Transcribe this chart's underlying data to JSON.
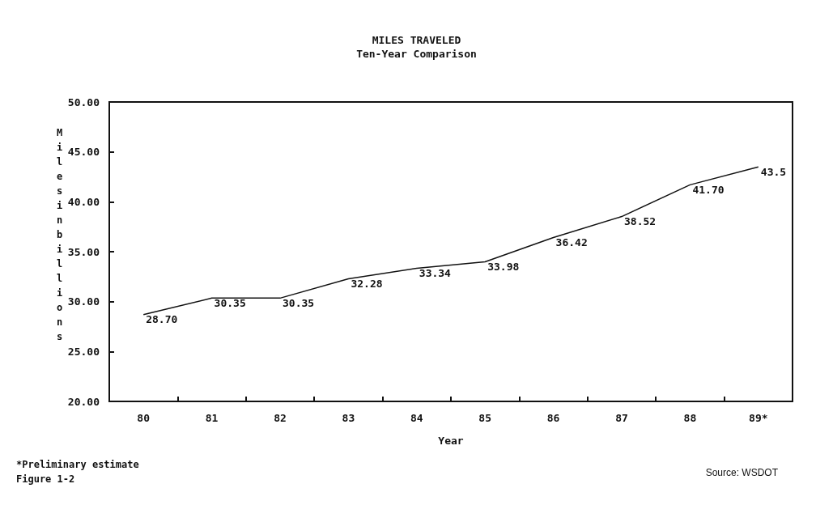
{
  "chart_data": {
    "type": "line",
    "title": "MILES TRAVELED",
    "subtitle": "Ten-Year Comparison",
    "xlabel": "Year",
    "ylabel": "Miles in billions",
    "categories": [
      "80",
      "81",
      "82",
      "83",
      "84",
      "85",
      "86",
      "87",
      "88",
      "89*"
    ],
    "series": [
      {
        "color": "#111111",
        "values": [
          28.7,
          30.35,
          30.35,
          32.28,
          33.34,
          33.98,
          36.42,
          38.52,
          41.7,
          43.5
        ],
        "value_labels": [
          "28.70",
          "30.35",
          "30.35",
          "32.28",
          "33.34",
          "33.98",
          "36.42",
          "38.52",
          "41.70",
          "43.5"
        ]
      }
    ],
    "ylim": [
      20,
      50
    ],
    "yticks": [
      {
        "value": 20,
        "label": "20.00"
      },
      {
        "value": 25,
        "label": "25.00"
      },
      {
        "value": 30,
        "label": "30.00"
      },
      {
        "value": 35,
        "label": "35.00"
      },
      {
        "value": 40,
        "label": "40.00"
      },
      {
        "value": 45,
        "label": "45.00"
      },
      {
        "value": 50,
        "label": "50.00"
      }
    ],
    "grid": false,
    "marker": "none",
    "line_style": "solid",
    "annotations": [
      "*Preliminary estimate",
      "Figure 1-2",
      "Source: WSDOT"
    ]
  }
}
